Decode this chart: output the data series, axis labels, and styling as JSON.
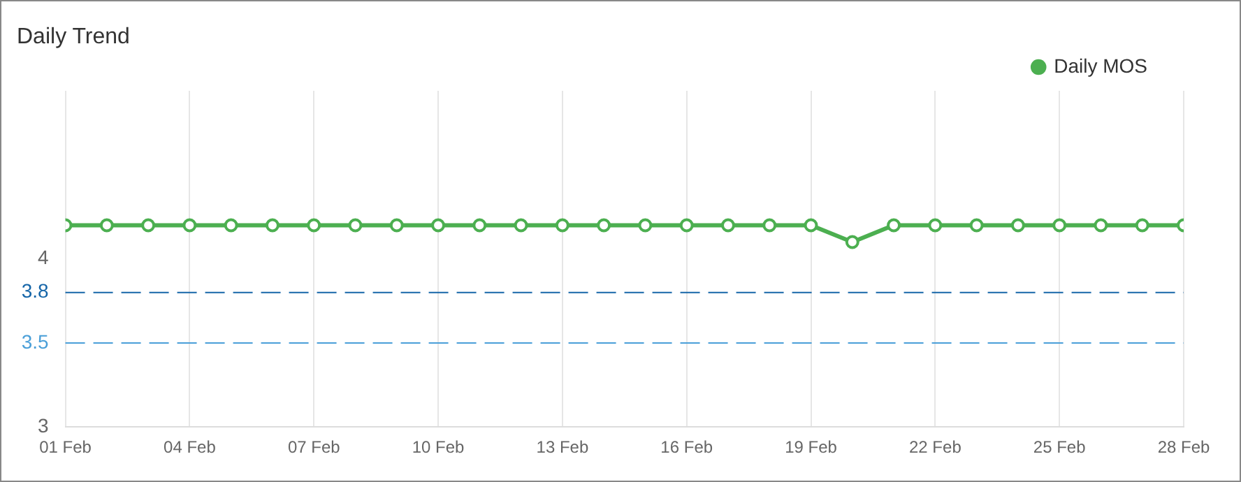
{
  "chart_data": {
    "type": "line",
    "title": "Daily Trend",
    "legend": "top right",
    "marker": "circle",
    "line_style": "solid",
    "grid": "x",
    "x": [
      "--02-01",
      "--02-02",
      "--02-03",
      "--02-04",
      "--02-05",
      "--02-06",
      "--02-07",
      "--02-08",
      "--02-09",
      "--02-10",
      "--02-11",
      "--02-12",
      "--02-13",
      "--02-14",
      "--02-15",
      "--02-16",
      "--02-17",
      "--02-18",
      "--02-19",
      "--02-20",
      "--02-21",
      "--02-22",
      "--02-23",
      "--02-24",
      "--02-25",
      "--02-26",
      "--02-27",
      "--02-28"
    ],
    "series": [
      {
        "name": "Daily MOS",
        "color": "#4caf50",
        "values": [
          4.2,
          4.2,
          4.2,
          4.2,
          4.2,
          4.2,
          4.2,
          4.2,
          4.2,
          4.2,
          4.2,
          4.2,
          4.2,
          4.2,
          4.2,
          4.2,
          4.2,
          4.2,
          4.2,
          4.1,
          4.2,
          4.2,
          4.2,
          4.2,
          4.2,
          4.2,
          4.2,
          4.2
        ]
      }
    ],
    "xlim": [
      "--02-01",
      "--02-28"
    ],
    "xticks": [
      {
        "value": "--02-01",
        "label": "01 Feb"
      },
      {
        "value": "--02-04",
        "label": "04 Feb"
      },
      {
        "value": "--02-07",
        "label": "07 Feb"
      },
      {
        "value": "--02-10",
        "label": "10 Feb"
      },
      {
        "value": "--02-13",
        "label": "13 Feb"
      },
      {
        "value": "--02-16",
        "label": "16 Feb"
      },
      {
        "value": "--02-19",
        "label": "19 Feb"
      },
      {
        "value": "--02-22",
        "label": "22 Feb"
      },
      {
        "value": "--02-25",
        "label": "25 Feb"
      },
      {
        "value": "--02-28",
        "label": "28 Feb"
      }
    ],
    "ylim": [
      3,
      5
    ],
    "yticks": [
      3,
      4
    ],
    "ref_lines": [
      {
        "axis": "y",
        "value": 3.8,
        "label": "3.8",
        "color": "#1565a8",
        "line_style": "dashed"
      },
      {
        "axis": "y",
        "value": 3.5,
        "label": "3.5",
        "color": "#4a9fd8",
        "line_style": "dashed"
      }
    ]
  }
}
